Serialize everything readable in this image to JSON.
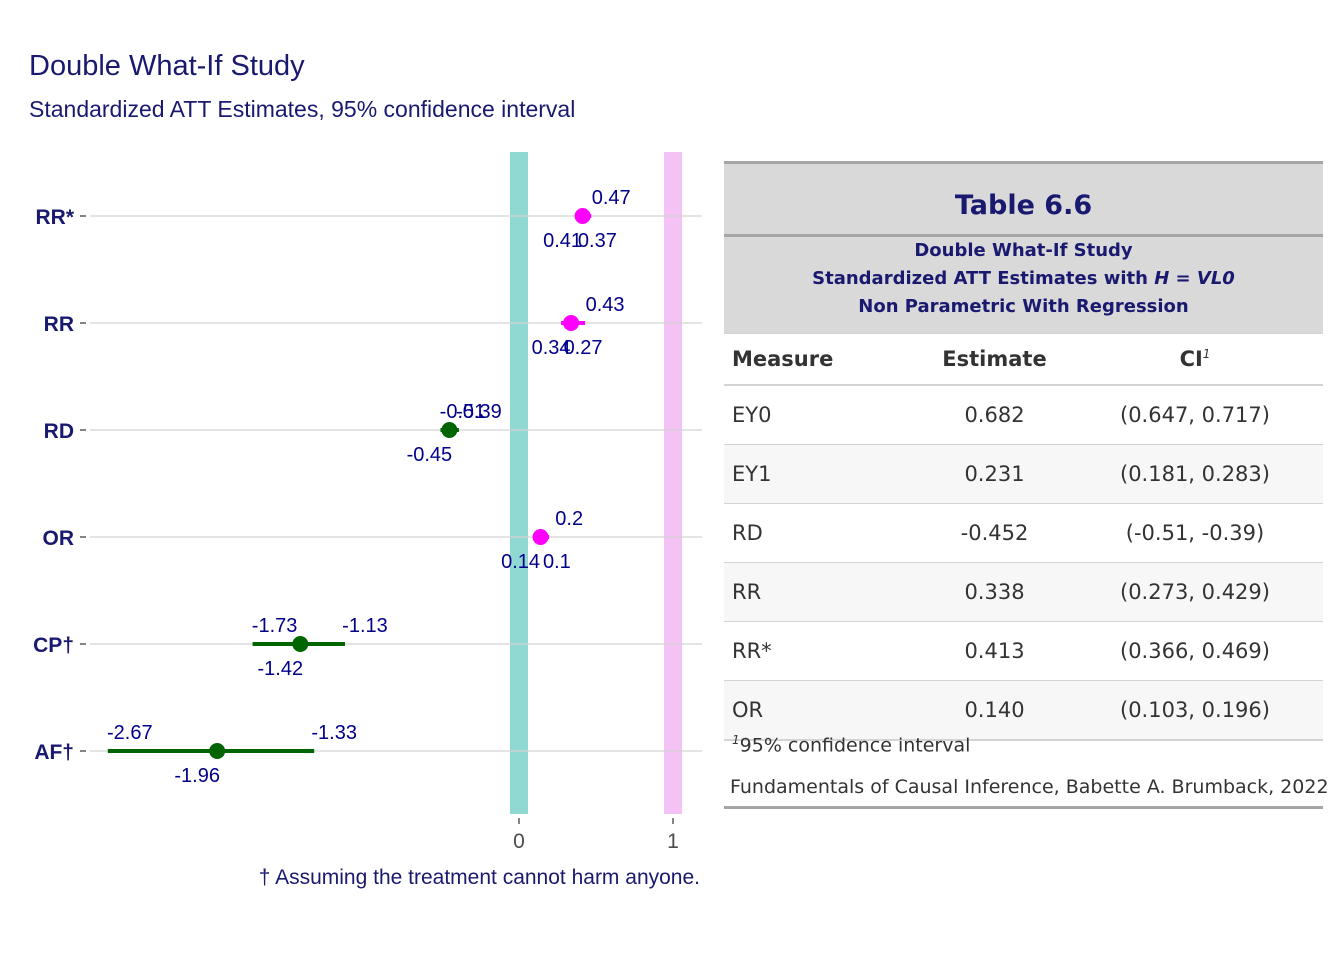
{
  "chart_data": {
    "type": "scatter",
    "title": "Double What-If Study",
    "subtitle": "Standardized ATT Estimates, 95% confidence interval",
    "caption": "† Assuming the treatment cannot harm anyone.",
    "x_ticks": [
      "0",
      "1"
    ],
    "xlim": [
      -2.7,
      1.2
    ],
    "reference_lines": [
      {
        "x": 0,
        "color": "#8fd9d2"
      },
      {
        "x": 1,
        "color": "#f4c2f4"
      }
    ],
    "colors": {
      "ratio": "#ff00ff",
      "difference": "#006400",
      "label": "#00008b",
      "axis_label": "#191970"
    },
    "rows": [
      {
        "name": "RR*",
        "est": 0.413,
        "lo": 0.366,
        "hi": 0.469,
        "kind": "ratio",
        "labels": {
          "est": "0.41",
          "lo": "0.37",
          "hi": "0.47"
        }
      },
      {
        "name": "RR",
        "est": 0.338,
        "lo": 0.273,
        "hi": 0.429,
        "kind": "ratio",
        "labels": {
          "est": "0.34",
          "lo": "0.27",
          "hi": "0.43"
        }
      },
      {
        "name": "RD",
        "est": -0.452,
        "lo": -0.51,
        "hi": -0.39,
        "kind": "difference",
        "labels": {
          "est": "-0.45",
          "lo": "-0.51",
          "hi": "-0.39"
        }
      },
      {
        "name": "OR",
        "est": 0.14,
        "lo": 0.103,
        "hi": 0.196,
        "kind": "ratio",
        "labels": {
          "est": "0.14",
          "lo": "0.1",
          "hi": "0.2"
        }
      },
      {
        "name": "CP†",
        "est": -1.42,
        "lo": -1.73,
        "hi": -1.13,
        "kind": "difference",
        "labels": {
          "est": "-1.42",
          "lo": "-1.73",
          "hi": "-1.13"
        }
      },
      {
        "name": "AF†",
        "est": -1.96,
        "lo": -2.67,
        "hi": -1.33,
        "kind": "difference",
        "labels": {
          "est": "-1.96",
          "lo": "-2.67",
          "hi": "-1.33"
        }
      }
    ]
  },
  "table": {
    "title": "Table 6.6",
    "sub1": "Double What-If Study",
    "sub2_pre": "Standardized ATT Estimates with ",
    "sub2_h": "H",
    "sub2_eq": " = ",
    "sub2_val": "VL0",
    "sub3": "Non Parametric With Regression",
    "headers": {
      "measure": "Measure",
      "estimate": "Estimate",
      "ci": "CI",
      "ci_mark": "1"
    },
    "rows": [
      {
        "measure": "EY0",
        "estimate": "0.682",
        "ci": "(0.647, 0.717)"
      },
      {
        "measure": "EY1",
        "estimate": "0.231",
        "ci": "(0.181, 0.283)"
      },
      {
        "measure": "RD",
        "estimate": "-0.452",
        "ci": "(-0.51, -0.39)"
      },
      {
        "measure": "RR",
        "estimate": "0.338",
        "ci": "(0.273, 0.429)"
      },
      {
        "measure": "RR*",
        "estimate": "0.413",
        "ci": "(0.366, 0.469)"
      },
      {
        "measure": "OR",
        "estimate": "0.140",
        "ci": "(0.103, 0.196)"
      }
    ],
    "footnote_mark": "1",
    "footnote": "95% confidence interval",
    "source": "Fundamentals of Causal Inference, Babette A. Brumback, 2022"
  }
}
